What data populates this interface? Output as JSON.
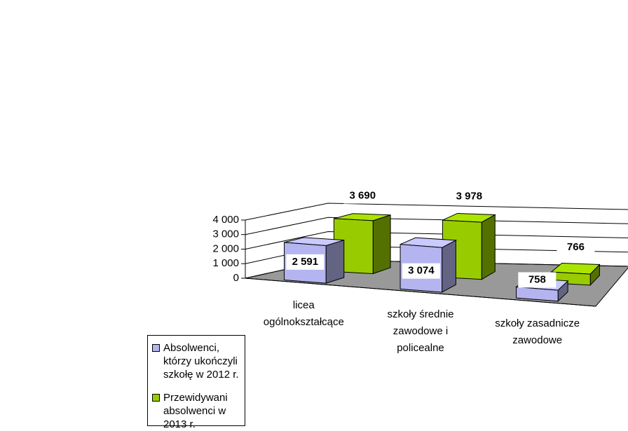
{
  "chart_data": {
    "type": "bar3d",
    "categories": [
      "licea ogólnokształcące",
      "szkoły średnie zawodowe i policealne",
      "szkoły zasadnicze zawodowe"
    ],
    "series": [
      {
        "name": "Absolwenci, którzy ukończyli szkołę w 2012 r.",
        "color": "#b4b4f0",
        "values": [
          2591,
          3074,
          758
        ],
        "value_labels": [
          "2 591",
          "3 074",
          "758"
        ]
      },
      {
        "name": "Przewidywani absolwenci w 2013 r.",
        "color": "#99cc00",
        "values": [
          3690,
          3978,
          766
        ],
        "value_labels": [
          "3 690",
          "3 978",
          "766"
        ]
      }
    ],
    "ylim": [
      0,
      4000
    ],
    "yticks": [
      0,
      {
        "value": 1000,
        "label": "1 000"
      },
      {
        "value": 2000,
        "label": "2 000"
      },
      {
        "value": 3000,
        "label": "3 000"
      },
      {
        "value": 4000,
        "label": "4 000"
      }
    ],
    "grid": true
  }
}
